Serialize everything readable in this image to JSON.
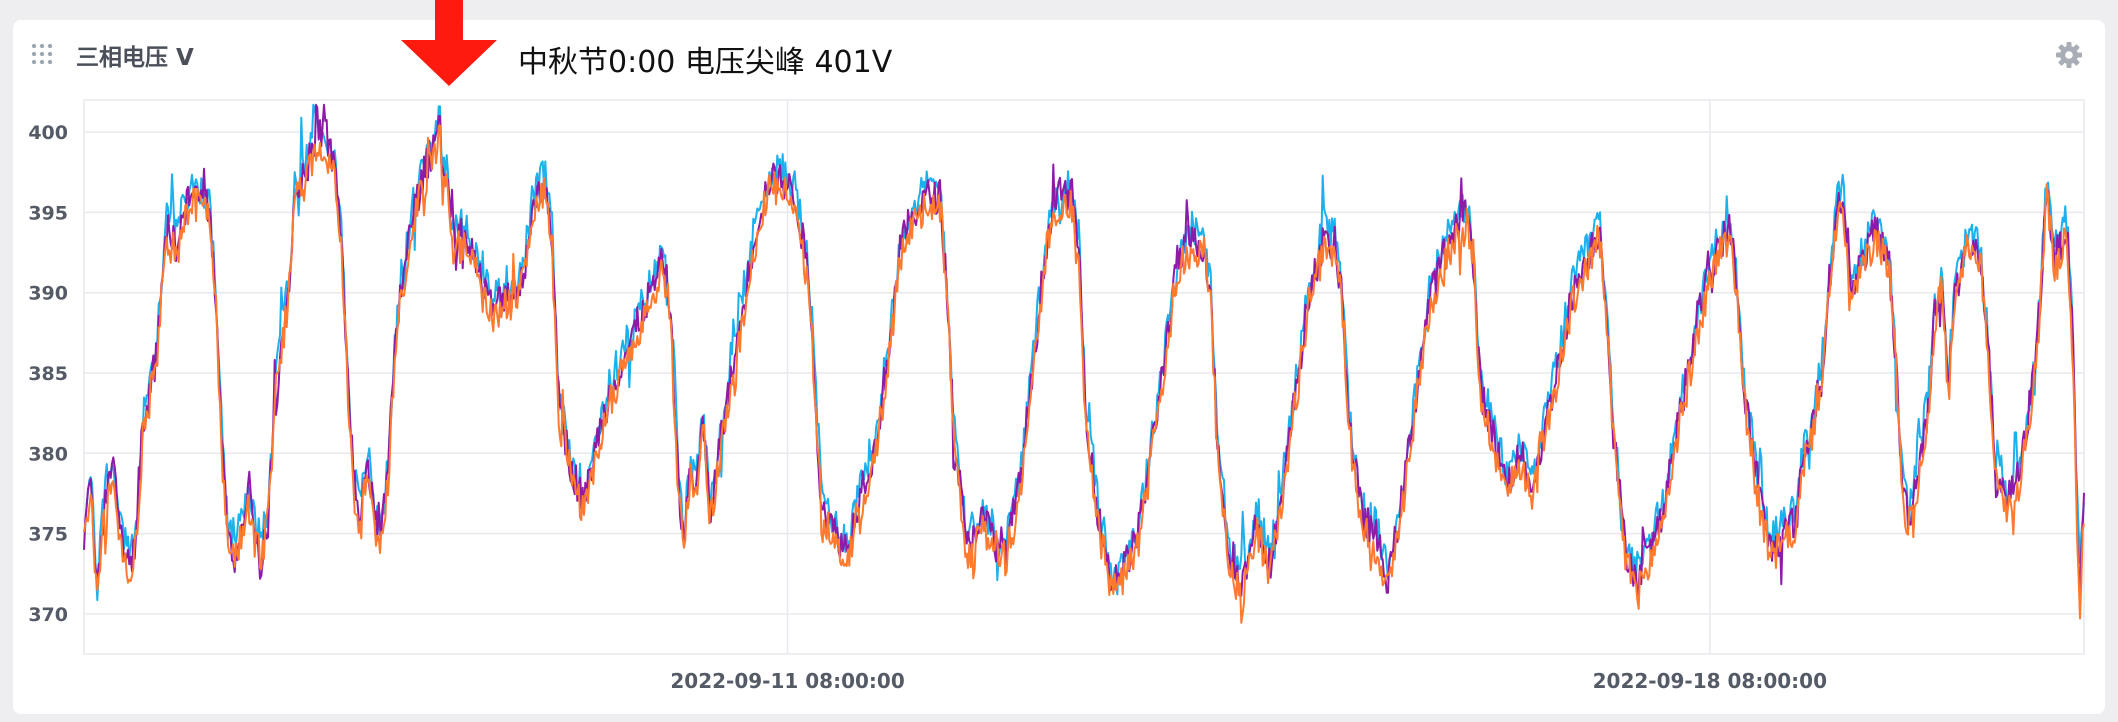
{
  "panel": {
    "title": "三相电压 V",
    "annotation": "中秋节0:00  电压尖峰 401V",
    "drag_icon": "drag-handle-icon",
    "settings_icon": "gear-icon",
    "marker_icon": "down-arrow-icon"
  },
  "colors": {
    "phase_a": "#1cb0ec",
    "phase_b": "#8e1aa8",
    "phase_c": "#ff7a2e",
    "arrow": "#ff1a10",
    "grid": "#e8e9ee"
  },
  "chart_data": {
    "type": "line",
    "title": "三相电压 V",
    "annotation": {
      "text": "中秋节0:00  电压尖峰 401V",
      "target_value": 401
    },
    "ylabel": "",
    "xlabel": "",
    "ylim": [
      367.5,
      402
    ],
    "yticks": [
      400,
      395,
      390,
      385,
      380,
      375,
      370
    ],
    "xticks": [
      {
        "label": "2022-09-11 08:00:00",
        "day": 5.34
      },
      {
        "label": "2022-09-18 08:00:00",
        "day": 12.34
      }
    ],
    "x_range_days": [
      0,
      15.18
    ],
    "grid": true,
    "legend": "none",
    "series": [
      {
        "color": "#1cb0ec",
        "offset": 0.6
      },
      {
        "color": "#8e1aa8",
        "offset": 0.0
      },
      {
        "color": "#ff7a2e",
        "offset": -0.6
      }
    ],
    "envelope": [
      [
        0.0,
        375
      ],
      [
        0.05,
        378
      ],
      [
        0.1,
        371
      ],
      [
        0.15,
        377
      ],
      [
        0.2,
        379
      ],
      [
        0.25,
        377
      ],
      [
        0.3,
        374
      ],
      [
        0.35,
        373
      ],
      [
        0.4,
        375
      ],
      [
        0.45,
        382
      ],
      [
        0.55,
        386
      ],
      [
        0.62,
        394
      ],
      [
        0.7,
        393
      ],
      [
        0.8,
        396
      ],
      [
        0.9,
        396
      ],
      [
        0.95,
        395
      ],
      [
        1.0,
        390
      ],
      [
        1.05,
        380
      ],
      [
        1.1,
        374
      ],
      [
        1.2,
        375
      ],
      [
        1.25,
        377
      ],
      [
        1.3,
        375
      ],
      [
        1.35,
        374
      ],
      [
        1.4,
        376
      ],
      [
        1.45,
        384
      ],
      [
        1.55,
        390
      ],
      [
        1.6,
        396
      ],
      [
        1.7,
        398
      ],
      [
        1.8,
        400
      ],
      [
        1.9,
        398
      ],
      [
        1.95,
        394
      ],
      [
        2.0,
        385
      ],
      [
        2.05,
        378
      ],
      [
        2.1,
        376
      ],
      [
        2.15,
        380
      ],
      [
        2.2,
        376
      ],
      [
        2.25,
        375
      ],
      [
        2.3,
        378
      ],
      [
        2.35,
        385
      ],
      [
        2.4,
        390
      ],
      [
        2.5,
        395
      ],
      [
        2.6,
        398
      ],
      [
        2.65,
        399
      ],
      [
        2.7,
        400.5
      ],
      [
        2.72,
        397
      ],
      [
        2.75,
        398
      ],
      [
        2.8,
        393
      ],
      [
        2.9,
        394
      ],
      [
        3.0,
        391
      ],
      [
        3.1,
        389
      ],
      [
        3.2,
        390
      ],
      [
        3.3,
        390
      ],
      [
        3.35,
        392
      ],
      [
        3.4,
        395
      ],
      [
        3.45,
        396
      ],
      [
        3.5,
        397
      ],
      [
        3.55,
        394
      ],
      [
        3.6,
        383
      ],
      [
        3.7,
        379
      ],
      [
        3.8,
        377
      ],
      [
        3.9,
        381
      ],
      [
        4.0,
        384
      ],
      [
        4.1,
        386
      ],
      [
        4.2,
        388
      ],
      [
        4.3,
        390
      ],
      [
        4.4,
        392
      ],
      [
        4.45,
        389
      ],
      [
        4.5,
        380
      ],
      [
        4.55,
        374
      ],
      [
        4.6,
        379
      ],
      [
        4.65,
        378
      ],
      [
        4.7,
        382
      ],
      [
        4.75,
        376
      ],
      [
        4.8,
        379
      ],
      [
        4.85,
        382
      ],
      [
        4.9,
        384
      ],
      [
        5.0,
        389
      ],
      [
        5.1,
        394
      ],
      [
        5.2,
        397
      ],
      [
        5.3,
        397
      ],
      [
        5.4,
        396
      ],
      [
        5.5,
        391
      ],
      [
        5.55,
        384
      ],
      [
        5.6,
        377
      ],
      [
        5.7,
        375
      ],
      [
        5.8,
        374
      ],
      [
        5.9,
        378
      ],
      [
        6.0,
        380
      ],
      [
        6.1,
        386
      ],
      [
        6.2,
        393
      ],
      [
        6.3,
        395
      ],
      [
        6.4,
        396
      ],
      [
        6.5,
        396
      ],
      [
        6.55,
        390
      ],
      [
        6.6,
        382
      ],
      [
        6.7,
        374
      ],
      [
        6.8,
        376
      ],
      [
        6.9,
        375
      ],
      [
        7.0,
        374
      ],
      [
        7.1,
        378
      ],
      [
        7.2,
        385
      ],
      [
        7.3,
        393
      ],
      [
        7.4,
        396
      ],
      [
        7.5,
        396
      ],
      [
        7.55,
        393
      ],
      [
        7.6,
        383
      ],
      [
        7.7,
        376
      ],
      [
        7.8,
        372
      ],
      [
        7.9,
        373
      ],
      [
        8.0,
        375
      ],
      [
        8.1,
        380
      ],
      [
        8.2,
        386
      ],
      [
        8.3,
        392
      ],
      [
        8.4,
        393
      ],
      [
        8.5,
        393
      ],
      [
        8.55,
        390
      ],
      [
        8.6,
        381
      ],
      [
        8.7,
        373
      ],
      [
        8.8,
        372
      ],
      [
        8.9,
        376
      ],
      [
        9.0,
        373
      ],
      [
        9.1,
        378
      ],
      [
        9.2,
        384
      ],
      [
        9.3,
        390
      ],
      [
        9.4,
        393
      ],
      [
        9.5,
        393
      ],
      [
        9.55,
        390
      ],
      [
        9.6,
        382
      ],
      [
        9.7,
        376
      ],
      [
        9.8,
        375
      ],
      [
        9.9,
        372
      ],
      [
        10.0,
        377
      ],
      [
        10.1,
        383
      ],
      [
        10.2,
        389
      ],
      [
        10.3,
        392
      ],
      [
        10.4,
        394
      ],
      [
        10.5,
        395
      ],
      [
        10.55,
        391
      ],
      [
        10.6,
        384
      ],
      [
        10.7,
        381
      ],
      [
        10.8,
        378
      ],
      [
        10.9,
        380
      ],
      [
        11.0,
        378
      ],
      [
        11.1,
        382
      ],
      [
        11.2,
        386
      ],
      [
        11.3,
        390
      ],
      [
        11.4,
        392
      ],
      [
        11.5,
        394
      ],
      [
        11.55,
        390
      ],
      [
        11.6,
        382
      ],
      [
        11.7,
        374
      ],
      [
        11.8,
        372
      ],
      [
        11.9,
        374
      ],
      [
        12.0,
        377
      ],
      [
        12.1,
        382
      ],
      [
        12.2,
        386
      ],
      [
        12.3,
        390
      ],
      [
        12.4,
        393
      ],
      [
        12.5,
        394
      ],
      [
        12.55,
        390
      ],
      [
        12.6,
        384
      ],
      [
        12.7,
        378
      ],
      [
        12.8,
        374
      ],
      [
        12.9,
        375
      ],
      [
        13.0,
        376
      ],
      [
        13.05,
        380
      ],
      [
        13.1,
        381
      ],
      [
        13.2,
        386
      ],
      [
        13.25,
        391
      ],
      [
        13.3,
        395
      ],
      [
        13.35,
        396
      ],
      [
        13.4,
        390
      ],
      [
        13.5,
        392
      ],
      [
        13.6,
        394
      ],
      [
        13.7,
        392
      ],
      [
        13.75,
        386
      ],
      [
        13.8,
        378
      ],
      [
        13.85,
        376
      ],
      [
        13.9,
        378
      ],
      [
        14.0,
        383
      ],
      [
        14.05,
        389
      ],
      [
        14.1,
        391
      ],
      [
        14.15,
        384
      ],
      [
        14.2,
        390
      ],
      [
        14.3,
        393
      ],
      [
        14.4,
        392
      ],
      [
        14.45,
        387
      ],
      [
        14.5,
        380
      ],
      [
        14.6,
        377
      ],
      [
        14.7,
        379
      ],
      [
        14.75,
        382
      ],
      [
        14.8,
        385
      ],
      [
        14.85,
        390
      ],
      [
        14.9,
        397
      ],
      [
        14.95,
        392
      ],
      [
        15.0,
        393
      ],
      [
        15.05,
        394
      ],
      [
        15.1,
        386
      ],
      [
        15.13,
        375
      ],
      [
        15.15,
        371
      ],
      [
        15.18,
        377
      ]
    ]
  }
}
